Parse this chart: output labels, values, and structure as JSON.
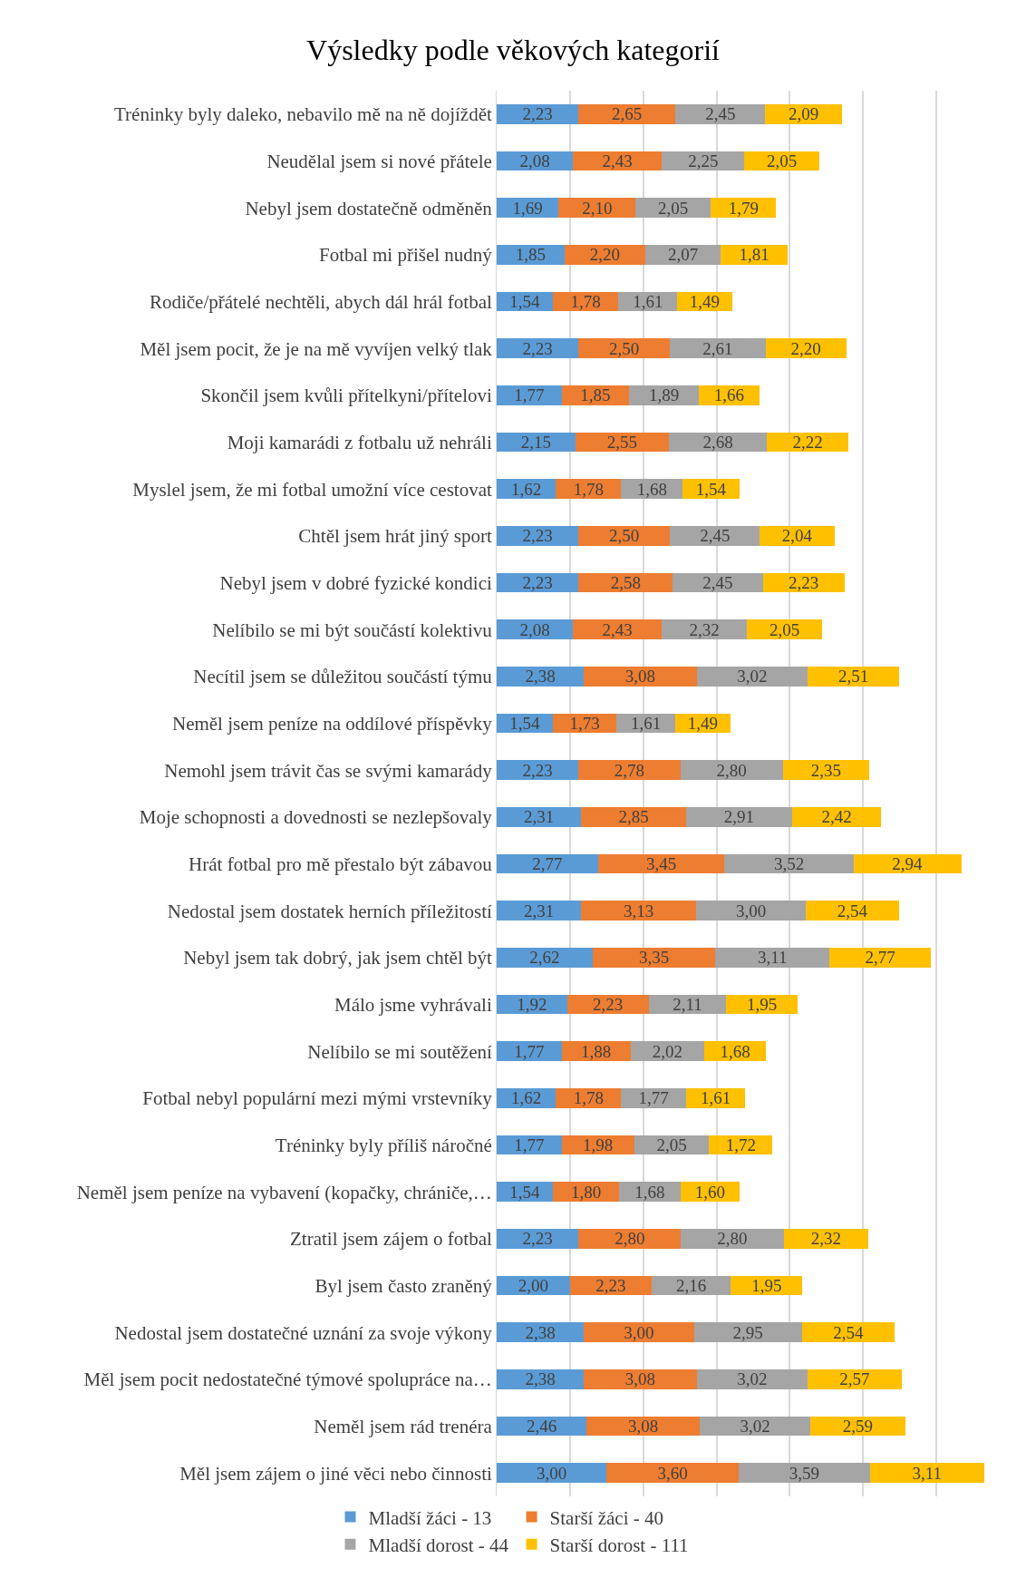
{
  "chart_data": {
    "type": "bar",
    "title": "Výsledky podle věkových kategorií",
    "orientation": "horizontal",
    "stacked": true,
    "grid": "x",
    "legend": "bottom",
    "categories": [
      "Tréninky byly daleko, nebavilo mě na ně dojíždět",
      "Neudělal jsem si nové přátele",
      "Nebyl jsem dostatečně odměněn",
      "Fotbal mi přišel nudný",
      "Rodiče/přátelé nechtěli, abych dál hrál fotbal",
      "Měl jsem pocit, že je na mě vyvíjen velký tlak",
      "Skončil jsem kvůli přítelkyni/přítelovi",
      "Moji kamarádi z fotbalu už nehráli",
      "Myslel jsem, že mi fotbal umožní více cestovat",
      "Chtěl jsem hrát jiný sport",
      "Nebyl jsem v dobré fyzické kondici",
      "Nelíbilo se mi být součástí kolektivu",
      "Necítil jsem se důležitou součástí týmu",
      "Neměl jsem peníze na oddílové příspěvky",
      "Nemohl jsem trávit čas se svými kamarády",
      "Moje schopnosti a dovednosti se nezlepšovaly",
      "Hrát fotbal pro mě přestalo být zábavou",
      "Nedostal jsem dostatek herních příležitostí",
      "Nebyl jsem tak dobrý, jak jsem chtěl být",
      "Málo jsme vyhrávali",
      "Nelíbilo se mi soutěžení",
      "Fotbal nebyl populární mezi mými vrstevníky",
      "Tréninky byly příliš náročné",
      "Neměl jsem peníze na vybavení (kopačky, chrániče,…",
      "Ztratil jsem zájem o fotbal",
      "Byl jsem často zraněný",
      "Nedostal jsem dostatečné uznání za svoje výkony",
      "Měl jsem pocit nedostatečné týmové spolupráce na…",
      "Neměl jsem rád trenéra",
      "Měl jsem zájem o jiné věci nebo činnosti"
    ],
    "series": [
      {
        "name": "Mladší žáci - 13",
        "color": "#5b9bd5",
        "values": [
          2.23,
          2.08,
          1.69,
          1.85,
          1.54,
          2.23,
          1.77,
          2.15,
          1.62,
          2.23,
          2.23,
          2.08,
          2.38,
          1.54,
          2.23,
          2.31,
          2.77,
          2.31,
          2.62,
          1.92,
          1.77,
          1.62,
          1.77,
          1.54,
          2.23,
          2.0,
          2.38,
          2.38,
          2.46,
          3.0
        ],
        "value_labels": [
          "2,23",
          "2,08",
          "1,69",
          "1,85",
          "1,54",
          "2,23",
          "1,77",
          "2,15",
          "1,62",
          "2,23",
          "2,23",
          "2,08",
          "2,38",
          "1,54",
          "2,23",
          "2,31",
          "2,77",
          "2,31",
          "2,62",
          "1,92",
          "1,77",
          "1,62",
          "1,77",
          "1,54",
          "2,23",
          "2,00",
          "2,38",
          "2,38",
          "2,46",
          "3,00"
        ]
      },
      {
        "name": "Starší žáci - 40",
        "color": "#ed7d31",
        "values": [
          2.65,
          2.43,
          2.1,
          2.2,
          1.78,
          2.5,
          1.85,
          2.55,
          1.78,
          2.5,
          2.58,
          2.43,
          3.08,
          1.73,
          2.78,
          2.85,
          3.45,
          3.13,
          3.35,
          2.23,
          1.88,
          1.78,
          1.98,
          1.8,
          2.8,
          2.23,
          3.0,
          3.08,
          3.08,
          3.6
        ],
        "value_labels": [
          "2,65",
          "2,43",
          "2,10",
          "2,20",
          "1,78",
          "2,50",
          "1,85",
          "2,55",
          "1,78",
          "2,50",
          "2,58",
          "2,43",
          "3,08",
          "1,73",
          "2,78",
          "2,85",
          "3,45",
          "3,13",
          "3,35",
          "2,23",
          "1,88",
          "1,78",
          "1,98",
          "1,80",
          "2,80",
          "2,23",
          "3,00",
          "3,08",
          "3,08",
          "3,60"
        ]
      },
      {
        "name": "Mladší dorost - 44",
        "color": "#a5a5a5",
        "values": [
          2.45,
          2.25,
          2.05,
          2.07,
          1.61,
          2.61,
          1.89,
          2.68,
          1.68,
          2.45,
          2.45,
          2.32,
          3.02,
          1.61,
          2.8,
          2.91,
          3.52,
          3.0,
          3.11,
          2.11,
          2.02,
          1.77,
          2.05,
          1.68,
          2.8,
          2.16,
          2.95,
          3.02,
          3.02,
          3.59
        ],
        "value_labels": [
          "2,45",
          "2,25",
          "2,05",
          "2,07",
          "1,61",
          "2,61",
          "1,89",
          "2,68",
          "1,68",
          "2,45",
          "2,45",
          "2,32",
          "3,02",
          "1,61",
          "2,80",
          "2,91",
          "3,52",
          "3,00",
          "3,11",
          "2,11",
          "2,02",
          "1,77",
          "2,05",
          "1,68",
          "2,80",
          "2,16",
          "2,95",
          "3,02",
          "3,02",
          "3,59"
        ]
      },
      {
        "name": "Starší dorost - 111",
        "color": "#ffc000",
        "values": [
          2.09,
          2.05,
          1.79,
          1.81,
          1.49,
          2.2,
          1.66,
          2.22,
          1.54,
          2.04,
          2.23,
          2.05,
          2.51,
          1.49,
          2.35,
          2.42,
          2.94,
          2.54,
          2.77,
          1.95,
          1.68,
          1.61,
          1.72,
          1.6,
          2.32,
          1.95,
          2.54,
          2.57,
          2.59,
          3.11
        ],
        "value_labels": [
          "2,09",
          "2,05",
          "1,79",
          "1,81",
          "1,49",
          "2,20",
          "1,66",
          "2,22",
          "1,54",
          "2,04",
          "2,23",
          "2,05",
          "2,51",
          "1,49",
          "2,35",
          "2,42",
          "2,94",
          "2,54",
          "2,77",
          "1,95",
          "1,68",
          "1,61",
          "1,72",
          "1,60",
          "2,32",
          "1,95",
          "2,54",
          "2,57",
          "2,59",
          "3,11"
        ]
      }
    ]
  }
}
